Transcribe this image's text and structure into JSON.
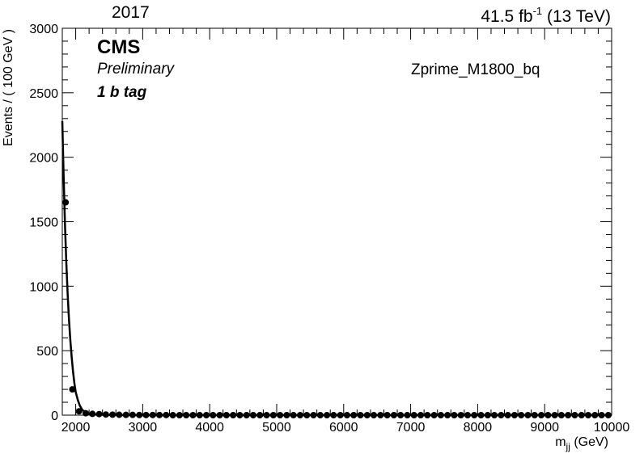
{
  "chart_data": {
    "type": "scatter",
    "title": "",
    "header": {
      "year": "2017",
      "luminosity": "41.5 fb",
      "luminosity_exponent": "-1",
      "energy": "(13 TeV)"
    },
    "labels": {
      "experiment": "CMS",
      "status": "Preliminary",
      "category": "1 b tag",
      "sample": "Zprime_M1800_bq"
    },
    "xlabel_main": "m",
    "xlabel_sub": "jj",
    "xlabel_unit": "(GeV)",
    "ylabel": "Events / ( 100 GeV )",
    "xlim": [
      1800,
      10000
    ],
    "ylim": [
      0,
      3000
    ],
    "x_ticks": [
      {
        "value": 2000,
        "label": "2000"
      },
      {
        "value": 3000,
        "label": "3000"
      },
      {
        "value": 4000,
        "label": "4000"
      },
      {
        "value": 5000,
        "label": "5000"
      },
      {
        "value": 6000,
        "label": "6000"
      },
      {
        "value": 7000,
        "label": "7000"
      },
      {
        "value": 8000,
        "label": "8000"
      },
      {
        "value": 9000,
        "label": "9000"
      },
      {
        "value": 10000,
        "label": "10000"
      }
    ],
    "y_ticks": [
      {
        "value": 0,
        "label": "0"
      },
      {
        "value": 500,
        "label": "500"
      },
      {
        "value": 1000,
        "label": "1000"
      },
      {
        "value": 1500,
        "label": "1500"
      },
      {
        "value": 2000,
        "label": "2000"
      },
      {
        "value": 2500,
        "label": "2500"
      },
      {
        "value": 3000,
        "label": "3000"
      }
    ],
    "series": [
      {
        "type": "points",
        "x": [
          1850,
          1950,
          2050,
          2150,
          2250,
          2350,
          2450,
          2550,
          2650,
          2750,
          2850,
          2950,
          3050,
          3150,
          3250,
          3350,
          3450,
          3550,
          3650,
          3750,
          3850,
          3950,
          4050,
          4150,
          4250,
          4350,
          4450,
          4550,
          4650,
          4750,
          4850,
          4950,
          5050,
          5150,
          5250,
          5350,
          5450,
          5550,
          5650,
          5750,
          5850,
          5950,
          6050,
          6150,
          6250,
          6350,
          6450,
          6550,
          6650,
          6750,
          6850,
          6950,
          7050,
          7150,
          7250,
          7350,
          7450,
          7550,
          7650,
          7750,
          7850,
          7950,
          8050,
          8150,
          8250,
          8350,
          8450,
          8550,
          8650,
          8750,
          8850,
          8950,
          9050,
          9150,
          9250,
          9350,
          9450,
          9550,
          9650,
          9750,
          9850,
          9950
        ],
        "y": [
          1650,
          200,
          30,
          15,
          10,
          8,
          5,
          4,
          3,
          2,
          2,
          1,
          1,
          1,
          1,
          1,
          0,
          0,
          0,
          0,
          0,
          0,
          0,
          0,
          0,
          0,
          0,
          0,
          0,
          0,
          0,
          0,
          0,
          0,
          0,
          0,
          0,
          0,
          0,
          0,
          0,
          0,
          0,
          0,
          0,
          0,
          0,
          0,
          0,
          0,
          0,
          0,
          0,
          0,
          0,
          0,
          0,
          0,
          0,
          0,
          0,
          0,
          0,
          0,
          0,
          0,
          0,
          0,
          0,
          0,
          0,
          0,
          0,
          0,
          0,
          0,
          0,
          0,
          0,
          0,
          0,
          0
        ]
      },
      {
        "type": "line",
        "x": [
          1800,
          1820,
          1840,
          1860,
          1880,
          1900,
          1920,
          1940,
          1960,
          1980,
          2000,
          2030,
          2060,
          2100,
          2150,
          2200,
          2300,
          2400,
          2600,
          3000,
          4000,
          6000,
          10000
        ],
        "y": [
          2280,
          1850,
          1480,
          1180,
          940,
          740,
          580,
          450,
          340,
          250,
          180,
          120,
          75,
          40,
          22,
          12,
          6,
          3,
          1,
          0,
          0,
          0,
          0
        ]
      }
    ],
    "grid": false,
    "legend": "none"
  }
}
